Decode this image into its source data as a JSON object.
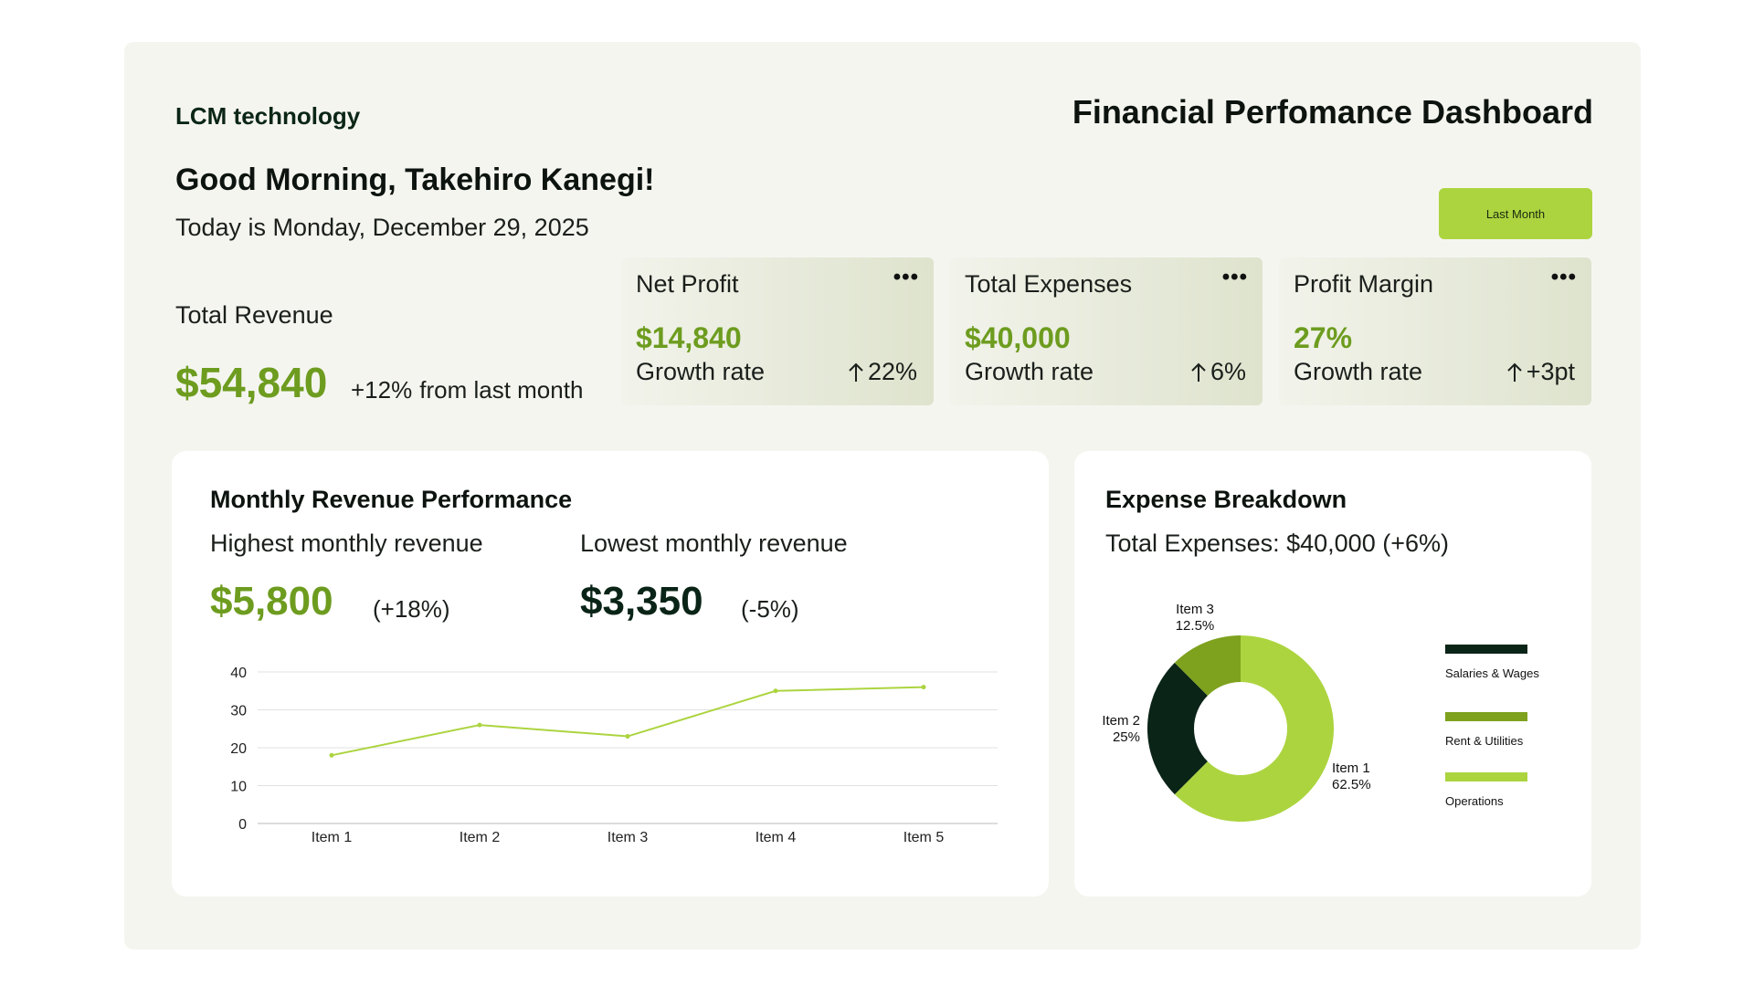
{
  "header": {
    "brand": "LCM technology",
    "title": "Financial Perfomance Dashboard",
    "greeting": "Good Morning, Takehiro Kanegi!",
    "date_line": "Today is Monday, December 29, 2025",
    "period_button": "Last Month"
  },
  "total_revenue": {
    "label": "Total Revenue",
    "value": "$54,840",
    "change": "+12%",
    "change_suffix": "from last month"
  },
  "kpis": [
    {
      "title": "Net Profit",
      "menu": "•••",
      "value": "$14,840",
      "sub": "Growth rate",
      "trend": "22%"
    },
    {
      "title": "Total Expenses",
      "menu": "•••",
      "value": "$40,000",
      "sub": "Growth rate",
      "trend": "6%"
    },
    {
      "title": "Profit Margin",
      "menu": "•••",
      "value": "27%",
      "sub": "Growth rate",
      "trend": "+3pt"
    }
  ],
  "revenue_card": {
    "title": "Monthly Revenue Performance",
    "highest_label": "Highest monthly revenue",
    "highest_value": "$5,800",
    "highest_change": "(+18%)",
    "lowest_label": "Lowest monthly revenue",
    "lowest_value": "$3,350",
    "lowest_change": "(-5%)"
  },
  "expense_card": {
    "title": "Expense Breakdown",
    "total_line": "Total Expenses: $40,000 (+6%)"
  },
  "colors": {
    "accent": "#acd43f",
    "accent_dark": "#6d9c1f",
    "dark": "#0a2417",
    "mid_green": "#7ea11e",
    "panel_bg": "#f5f5f0"
  },
  "chart_data": [
    {
      "type": "line",
      "categories": [
        "Item 1",
        "Item 2",
        "Item 3",
        "Item 4",
        "Item 5"
      ],
      "series": [
        {
          "values": [
            18,
            26,
            23,
            35,
            36
          ]
        }
      ],
      "ylim": [
        0,
        40
      ],
      "yticks": [
        0,
        10,
        20,
        30,
        40
      ],
      "grid": true,
      "line_color": "#acd43f"
    },
    {
      "type": "pie",
      "donut": true,
      "slices": [
        {
          "label": "Item 1",
          "value": 62.5,
          "percent_label": "62.5%",
          "color": "#acd43f"
        },
        {
          "label": "Item 2",
          "value": 25,
          "percent_label": "25%",
          "color": "#0a2417"
        },
        {
          "label": "Item 3",
          "value": 12.5,
          "percent_label": "12.5%",
          "color": "#7ea11e"
        }
      ],
      "legend": [
        {
          "label": "Salaries & Wages",
          "color": "#0a2417"
        },
        {
          "label": "Rent & Utilities",
          "color": "#7ea11e"
        },
        {
          "label": "Operations",
          "color": "#acd43f"
        }
      ],
      "legend_position": "right"
    }
  ]
}
